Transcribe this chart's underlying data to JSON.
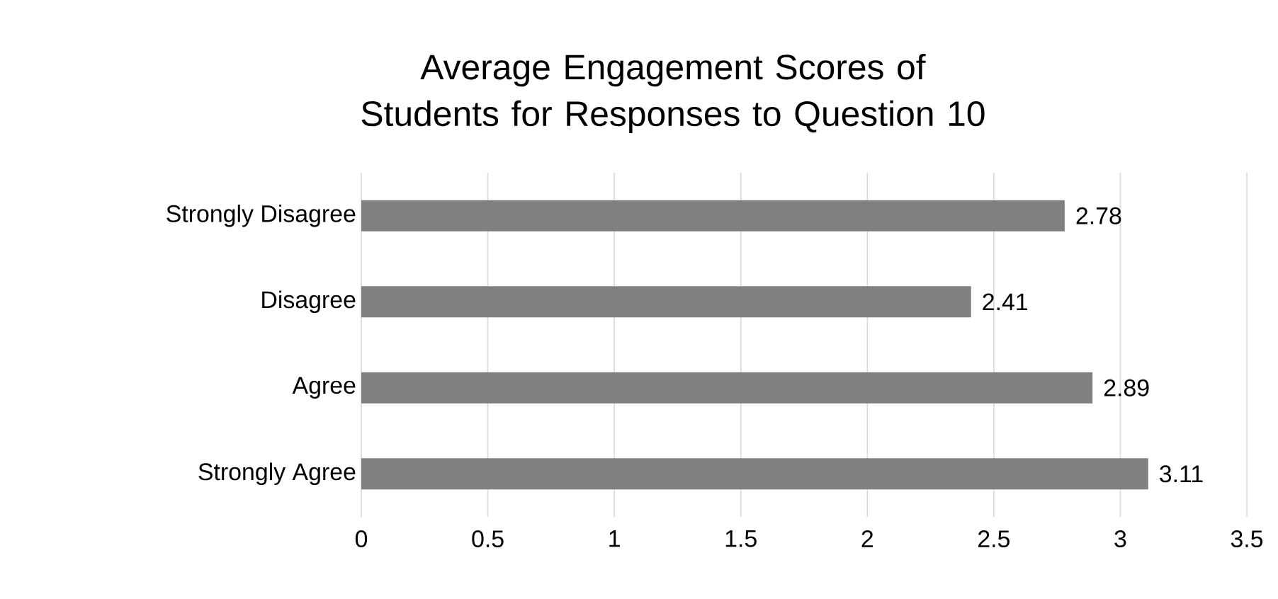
{
  "chart_data": {
    "type": "bar",
    "orientation": "horizontal",
    "title": "Average Engagement  Scores of Students for Responses to Question 10",
    "categories": [
      "Strongly Disagree",
      "Disagree",
      "Agree",
      "Strongly Agree"
    ],
    "values": [
      2.78,
      2.41,
      2.89,
      3.11
    ],
    "color": "#808080",
    "xlim": [
      0,
      3.5
    ],
    "xticks": [
      0,
      0.5,
      1,
      1.5,
      2,
      2.5,
      3,
      3.5
    ],
    "grid": "x",
    "data_labels": true
  }
}
